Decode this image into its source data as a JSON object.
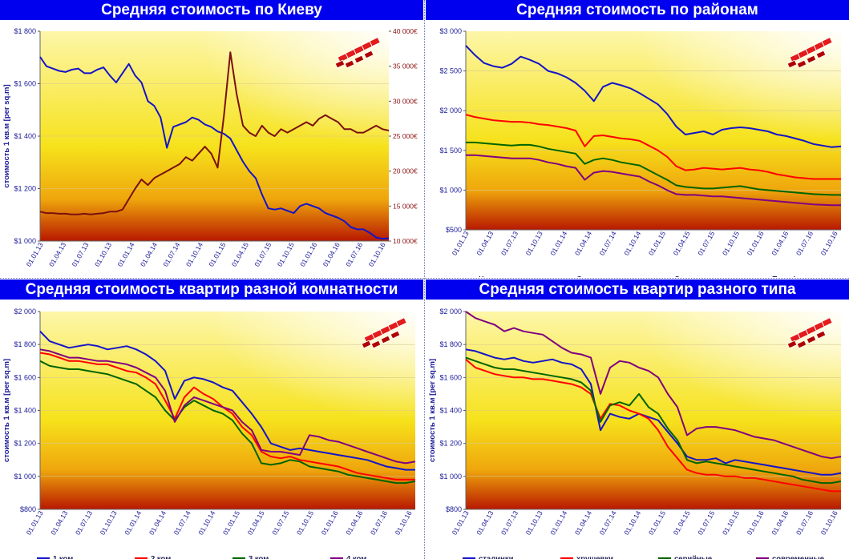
{
  "colors": {
    "title_bg": "#0000ee",
    "title_text": "#ffffff",
    "axis_text": "#1a1a99",
    "plot_top": "#fdf6a8",
    "plot_bottom": "#b81800"
  },
  "logo_icon": "stacked-bricks-logo-icon",
  "dates": [
    "01.01.13",
    "01.04.13",
    "01.07.13",
    "01.10.13",
    "01.01.14",
    "01.04.14",
    "01.07.14",
    "01.10.14",
    "01.01.15",
    "01.04.15",
    "01.07.15",
    "01.10.15",
    "01.01.16",
    "01.04.16",
    "01.07.16",
    "01.10.16"
  ],
  "chart_data": [
    {
      "type": "line",
      "title": "Средняя стоимость по Киеву",
      "ylabel": "стоимость 1 кв.м [per sq.m]",
      "ylim": [
        1000,
        1900
      ],
      "yticks": [
        "$1 000",
        "$1 200",
        "$1 400",
        "$1 600",
        "$1 800"
      ],
      "y2lim": [
        10000,
        40000
      ],
      "y2ticks": [
        "10 000€",
        "15 000€",
        "20 000€",
        "25 000€",
        "30 000€",
        "35 000€",
        "40 000€"
      ],
      "grid": true,
      "legend": "none",
      "series": [
        {
          "axis": "left",
          "color": "#1414c8",
          "values": [
            1790,
            1750,
            1740,
            1730,
            1725,
            1735,
            1740,
            1720,
            1720,
            1735,
            1745,
            1710,
            1680,
            1720,
            1760,
            1710,
            1680,
            1600,
            1580,
            1530,
            1400,
            1490,
            1500,
            1510,
            1530,
            1520,
            1500,
            1490,
            1470,
            1460,
            1440,
            1390,
            1340,
            1300,
            1270,
            1200,
            1140,
            1135,
            1140,
            1130,
            1120,
            1150,
            1160,
            1150,
            1140,
            1120,
            1110,
            1100,
            1085,
            1060,
            1050,
            1050,
            1035,
            1015,
            1010,
            1012
          ]
        },
        {
          "axis": "right",
          "color": "#7a1010",
          "values": [
            14200,
            14000,
            14000,
            13900,
            13900,
            13800,
            13800,
            13900,
            13800,
            13900,
            14000,
            14200,
            14200,
            14500,
            16000,
            17500,
            18800,
            18000,
            19000,
            19500,
            20000,
            20500,
            21000,
            22000,
            21500,
            22500,
            23500,
            22500,
            20500,
            28000,
            37000,
            31000,
            26500,
            25500,
            25000,
            26500,
            25500,
            25000,
            26000,
            25500,
            26000,
            26500,
            27000,
            26500,
            27500,
            28000,
            27500,
            27000,
            26000,
            26000,
            25500,
            25500,
            26000,
            26500,
            26000,
            25800
          ]
        }
      ]
    },
    {
      "type": "line",
      "title": "Средняя стоимость по районам",
      "ylim": [
        500,
        3000
      ],
      "yticks": [
        "$500",
        "$1 000",
        "$1 500",
        "$2 000",
        "$2 500",
        "$3 000"
      ],
      "grid": true,
      "legend": "bottom",
      "series": [
        {
          "name": "Центр",
          "color": "#1414c8",
          "values": [
            2820,
            2700,
            2600,
            2560,
            2540,
            2590,
            2680,
            2640,
            2590,
            2500,
            2470,
            2420,
            2350,
            2250,
            2120,
            2300,
            2350,
            2320,
            2280,
            2220,
            2150,
            2080,
            1960,
            1800,
            1700,
            1720,
            1740,
            1700,
            1760,
            1780,
            1790,
            1780,
            1760,
            1740,
            1700,
            1680,
            1650,
            1620,
            1580,
            1560,
            1540,
            1550
          ]
        },
        {
          "name": "Около центра",
          "color": "#ff0000",
          "values": [
            1950,
            1920,
            1900,
            1880,
            1870,
            1860,
            1860,
            1850,
            1830,
            1820,
            1800,
            1780,
            1750,
            1550,
            1680,
            1690,
            1670,
            1650,
            1640,
            1620,
            1560,
            1500,
            1420,
            1300,
            1250,
            1260,
            1280,
            1270,
            1260,
            1270,
            1280,
            1260,
            1250,
            1230,
            1200,
            1180,
            1160,
            1150,
            1140,
            1140,
            1140,
            1140
          ]
        },
        {
          "name": "Середина",
          "color": "#006400",
          "values": [
            1600,
            1600,
            1590,
            1580,
            1570,
            1560,
            1570,
            1570,
            1550,
            1520,
            1500,
            1480,
            1460,
            1330,
            1380,
            1400,
            1380,
            1350,
            1330,
            1310,
            1250,
            1190,
            1130,
            1060,
            1040,
            1030,
            1020,
            1020,
            1030,
            1040,
            1050,
            1030,
            1010,
            1000,
            990,
            980,
            970,
            960,
            950,
            945,
            940,
            940
          ]
        },
        {
          "name": "Периферия",
          "color": "#800080",
          "values": [
            1440,
            1440,
            1430,
            1420,
            1410,
            1400,
            1400,
            1400,
            1380,
            1350,
            1330,
            1300,
            1280,
            1130,
            1220,
            1240,
            1230,
            1210,
            1190,
            1170,
            1110,
            1060,
            1000,
            950,
            940,
            940,
            930,
            920,
            920,
            910,
            900,
            890,
            880,
            870,
            860,
            850,
            840,
            830,
            820,
            815,
            810,
            810
          ]
        }
      ]
    },
    {
      "type": "line",
      "title": "Средняя стоимость квартир разной комнатности",
      "ylabel": "стоимость 1 кв.м [per sq.m]",
      "ylim": [
        800,
        2000
      ],
      "yticks": [
        "$800",
        "$1 000",
        "$1 200",
        "$1 400",
        "$1 600",
        "$1 800",
        "$2 000"
      ],
      "grid": true,
      "legend": "bottom",
      "series": [
        {
          "name": "1 ком",
          "color": "#1414c8",
          "values": [
            1880,
            1820,
            1800,
            1780,
            1790,
            1800,
            1790,
            1770,
            1780,
            1790,
            1770,
            1740,
            1700,
            1640,
            1470,
            1580,
            1600,
            1590,
            1570,
            1540,
            1520,
            1450,
            1380,
            1300,
            1200,
            1180,
            1160,
            1170,
            1160,
            1150,
            1140,
            1130,
            1120,
            1110,
            1100,
            1080,
            1060,
            1050,
            1040,
            1040
          ]
        },
        {
          "name": "2 ком",
          "color": "#ff0000",
          "values": [
            1750,
            1740,
            1720,
            1700,
            1700,
            1690,
            1680,
            1680,
            1660,
            1640,
            1630,
            1600,
            1560,
            1460,
            1350,
            1480,
            1540,
            1500,
            1470,
            1420,
            1380,
            1300,
            1250,
            1150,
            1120,
            1110,
            1120,
            1100,
            1090,
            1080,
            1070,
            1060,
            1040,
            1020,
            1010,
            1000,
            990,
            980,
            980,
            980
          ]
        },
        {
          "name": "3 ком",
          "color": "#006400",
          "values": [
            1700,
            1670,
            1660,
            1650,
            1650,
            1640,
            1630,
            1620,
            1600,
            1580,
            1560,
            1520,
            1480,
            1400,
            1340,
            1420,
            1460,
            1430,
            1400,
            1380,
            1340,
            1260,
            1200,
            1080,
            1070,
            1080,
            1100,
            1090,
            1060,
            1050,
            1040,
            1030,
            1010,
            1000,
            990,
            980,
            970,
            960,
            960,
            970
          ]
        },
        {
          "name": "4 ком",
          "color": "#800080",
          "values": [
            1770,
            1760,
            1740,
            1720,
            1720,
            1710,
            1700,
            1700,
            1690,
            1680,
            1660,
            1630,
            1600,
            1520,
            1330,
            1430,
            1480,
            1460,
            1440,
            1420,
            1400,
            1330,
            1280,
            1160,
            1150,
            1150,
            1140,
            1130,
            1250,
            1240,
            1220,
            1210,
            1190,
            1170,
            1150,
            1130,
            1110,
            1090,
            1080,
            1090
          ]
        }
      ]
    },
    {
      "type": "line",
      "title": "Средняя стоимость квартир разного типа",
      "ylabel": "стоимость 1 кв.м [per sq.m]",
      "ylim": [
        800,
        2000
      ],
      "yticks": [
        "$800",
        "$1 000",
        "$1 200",
        "$1 400",
        "$1 600",
        "$1 800",
        "$2 000"
      ],
      "grid": true,
      "legend": "bottom",
      "series": [
        {
          "name": "сталинки",
          "color": "#1414c8",
          "values": [
            1770,
            1760,
            1740,
            1720,
            1710,
            1720,
            1700,
            1690,
            1700,
            1710,
            1690,
            1680,
            1650,
            1560,
            1280,
            1380,
            1360,
            1350,
            1380,
            1360,
            1340,
            1270,
            1200,
            1120,
            1100,
            1100,
            1110,
            1080,
            1100,
            1090,
            1080,
            1070,
            1060,
            1050,
            1040,
            1030,
            1020,
            1010,
            1010,
            1020
          ]
        },
        {
          "name": "хрущевки",
          "color": "#ff0000",
          "values": [
            1710,
            1660,
            1640,
            1620,
            1610,
            1600,
            1600,
            1590,
            1590,
            1580,
            1570,
            1560,
            1540,
            1500,
            1350,
            1440,
            1430,
            1400,
            1380,
            1350,
            1280,
            1180,
            1110,
            1040,
            1020,
            1010,
            1010,
            1000,
            1000,
            990,
            990,
            980,
            970,
            960,
            950,
            940,
            930,
            920,
            910,
            910
          ]
        },
        {
          "name": "серийные",
          "color": "#006400",
          "values": [
            1720,
            1700,
            1680,
            1660,
            1650,
            1650,
            1640,
            1630,
            1620,
            1610,
            1600,
            1590,
            1570,
            1520,
            1330,
            1430,
            1450,
            1430,
            1500,
            1420,
            1380,
            1290,
            1220,
            1100,
            1080,
            1090,
            1080,
            1070,
            1060,
            1050,
            1040,
            1030,
            1020,
            1010,
            1000,
            980,
            970,
            960,
            960,
            970
          ]
        },
        {
          "name": "современные",
          "color": "#800080",
          "values": [
            2010,
            1960,
            1940,
            1920,
            1880,
            1900,
            1880,
            1870,
            1860,
            1820,
            1780,
            1750,
            1740,
            1720,
            1500,
            1660,
            1700,
            1690,
            1660,
            1640,
            1600,
            1500,
            1420,
            1250,
            1290,
            1300,
            1300,
            1290,
            1280,
            1260,
            1240,
            1230,
            1220,
            1200,
            1180,
            1160,
            1140,
            1120,
            1110,
            1120
          ]
        }
      ]
    }
  ]
}
